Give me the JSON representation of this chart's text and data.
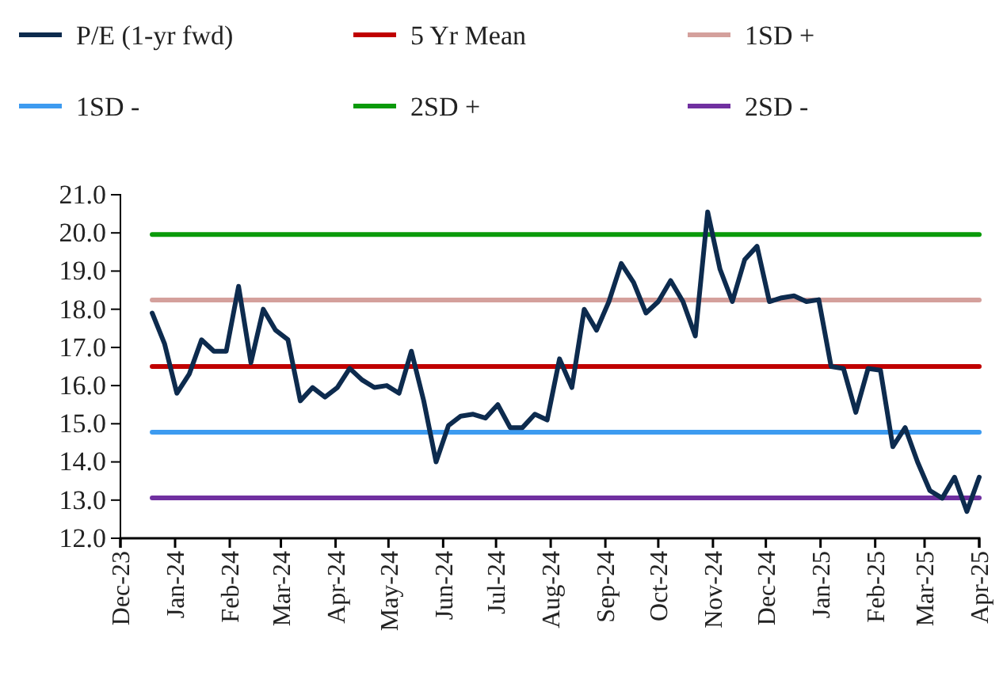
{
  "chart_data": {
    "type": "line",
    "legend": "top",
    "grid": false,
    "marker": "none",
    "line_style": "solid",
    "ylim": [
      12,
      21
    ],
    "yticks": [
      {
        "value": 12,
        "label": "12.0"
      },
      {
        "value": 13,
        "label": "13.0"
      },
      {
        "value": 14,
        "label": "14.0"
      },
      {
        "value": 15,
        "label": "15.0"
      },
      {
        "value": 16,
        "label": "16.0"
      },
      {
        "value": 17,
        "label": "17.0"
      },
      {
        "value": 18,
        "label": "18.0"
      },
      {
        "value": 19,
        "label": "19.0"
      },
      {
        "value": 20,
        "label": "20.0"
      },
      {
        "value": 21,
        "label": "21.0"
      }
    ],
    "xlim": [
      "2023-12-01",
      "2025-04-01"
    ],
    "xticks": [
      {
        "value": "2023-12-01",
        "label": "Dec-23"
      },
      {
        "value": "2024-01-01",
        "label": "Jan-24"
      },
      {
        "value": "2024-02-01",
        "label": "Feb-24"
      },
      {
        "value": "2024-03-01",
        "label": "Mar-24"
      },
      {
        "value": "2024-04-01",
        "label": "Apr-24"
      },
      {
        "value": "2024-05-01",
        "label": "May-24"
      },
      {
        "value": "2024-06-01",
        "label": "Jun-24"
      },
      {
        "value": "2024-07-01",
        "label": "Jul-24"
      },
      {
        "value": "2024-08-01",
        "label": "Aug-24"
      },
      {
        "value": "2024-09-01",
        "label": "Sep-24"
      },
      {
        "value": "2024-10-01",
        "label": "Oct-24"
      },
      {
        "value": "2024-11-01",
        "label": "Nov-24"
      },
      {
        "value": "2024-12-01",
        "label": "Dec-24"
      },
      {
        "value": "2025-01-01",
        "label": "Jan-25"
      },
      {
        "value": "2025-02-01",
        "label": "Feb-25"
      },
      {
        "value": "2025-03-01",
        "label": "Mar-25"
      },
      {
        "value": "2025-04-01",
        "label": "Apr-25"
      }
    ],
    "x": [
      "2023-12-19",
      "2023-12-26",
      "2024-01-02",
      "2024-01-09",
      "2024-01-16",
      "2024-01-23",
      "2024-01-30",
      "2024-02-06",
      "2024-02-13",
      "2024-02-20",
      "2024-02-27",
      "2024-03-05",
      "2024-03-12",
      "2024-03-19",
      "2024-03-26",
      "2024-04-02",
      "2024-04-09",
      "2024-04-16",
      "2024-04-23",
      "2024-04-30",
      "2024-05-07",
      "2024-05-14",
      "2024-05-21",
      "2024-05-28",
      "2024-06-04",
      "2024-06-11",
      "2024-06-18",
      "2024-06-25",
      "2024-07-02",
      "2024-07-09",
      "2024-07-16",
      "2024-07-23",
      "2024-07-30",
      "2024-08-06",
      "2024-08-13",
      "2024-08-20",
      "2024-08-27",
      "2024-09-03",
      "2024-09-10",
      "2024-09-17",
      "2024-09-24",
      "2024-10-01",
      "2024-10-08",
      "2024-10-15",
      "2024-10-22",
      "2024-10-29",
      "2024-11-05",
      "2024-11-12",
      "2024-11-19",
      "2024-11-26",
      "2024-12-03",
      "2024-12-10",
      "2024-12-17",
      "2024-12-24",
      "2024-12-31",
      "2025-01-07",
      "2025-01-14",
      "2025-01-21",
      "2025-01-28",
      "2025-02-04",
      "2025-02-11",
      "2025-02-18",
      "2025-02-25",
      "2025-03-04",
      "2025-03-11",
      "2025-03-18",
      "2025-03-25",
      "2025-04-01"
    ],
    "series": [
      {
        "name": "P/E (1-yr fwd)",
        "color": "#0d2b4e",
        "values": [
          17.9,
          17.1,
          15.8,
          16.3,
          17.2,
          16.9,
          16.9,
          18.6,
          16.6,
          18.0,
          17.45,
          17.2,
          15.6,
          15.95,
          15.7,
          15.95,
          16.45,
          16.15,
          15.95,
          16.0,
          15.8,
          16.9,
          15.6,
          14.0,
          14.95,
          15.2,
          15.25,
          15.15,
          15.5,
          14.9,
          14.9,
          15.25,
          15.1,
          16.7,
          15.95,
          18.0,
          17.45,
          18.2,
          19.2,
          18.7,
          17.9,
          18.2,
          18.75,
          18.2,
          17.3,
          20.55,
          19.05,
          18.2,
          19.3,
          19.65,
          18.2,
          18.3,
          18.35,
          18.2,
          18.25,
          16.5,
          16.45,
          15.3,
          16.45,
          16.4,
          14.4,
          14.9,
          14.0,
          13.25,
          13.05,
          13.6,
          12.7,
          13.6
        ]
      },
      {
        "name": "5 Yr Mean",
        "color": "#c00000",
        "x": [
          "2023-12-19",
          "2025-04-01"
        ],
        "values": [
          16.5,
          16.5
        ]
      },
      {
        "name": "1SD +",
        "color": "#d4a09c",
        "x": [
          "2023-12-19",
          "2025-04-01"
        ],
        "values": [
          18.24,
          18.24
        ]
      },
      {
        "name": "1SD -",
        "color": "#3d9bf0",
        "x": [
          "2023-12-19",
          "2025-04-01"
        ],
        "values": [
          14.78,
          14.78
        ]
      },
      {
        "name": "2SD +",
        "color": "#0a9a0a",
        "x": [
          "2023-12-19",
          "2025-04-01"
        ],
        "values": [
          19.96,
          19.96
        ]
      },
      {
        "name": "2SD -",
        "color": "#7030a0",
        "x": [
          "2023-12-19",
          "2025-04-01"
        ],
        "values": [
          13.06,
          13.06
        ]
      }
    ]
  }
}
